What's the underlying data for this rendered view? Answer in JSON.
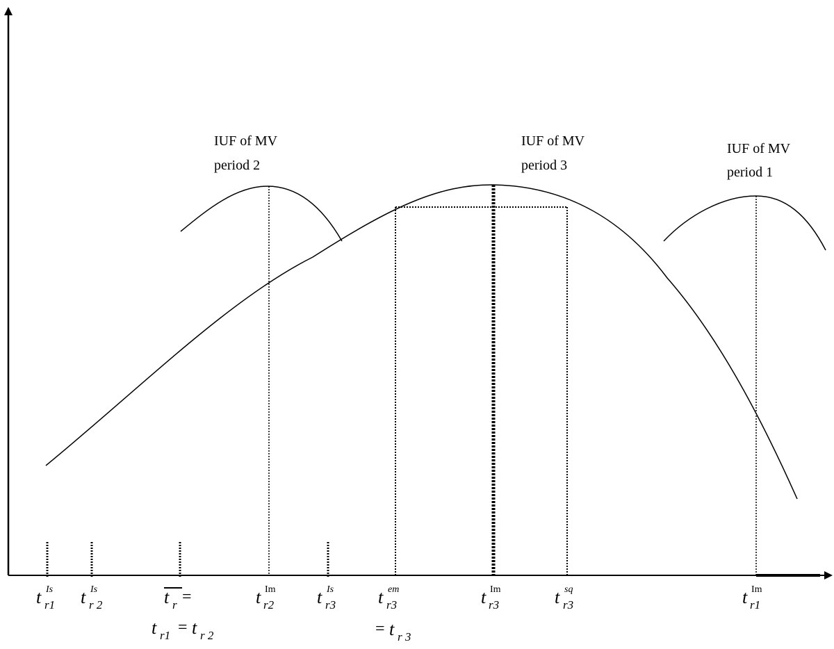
{
  "curves": {
    "period2": {
      "line1": "IUF of MV",
      "line2": "period 2"
    },
    "period3": {
      "line1": "IUF of MV",
      "line2": "period 3"
    },
    "period1": {
      "line1": "IUF of MV",
      "line2": "period 1"
    }
  },
  "ticks": {
    "t_r1_Is": {
      "base": "t",
      "sub": "r1",
      "sup": "Is"
    },
    "t_r2_Is": {
      "base": "t",
      "sub": "r 2",
      "sup": "Is"
    },
    "t_r_bar": {
      "base": "t",
      "sub": "r",
      "eq": "=",
      "line2_a_base": "t",
      "line2_a_sub": "r1",
      "line2_eq": "=",
      "line2_b_base": "t",
      "line2_b_sub": "r 2"
    },
    "t_r2_Im": {
      "base": "t",
      "sub": "r2",
      "sup": "Im"
    },
    "t_r3_Is": {
      "base": "t",
      "sub": "r3",
      "sup": "Is"
    },
    "t_r3_em": {
      "base": "t",
      "sub": "r3",
      "sup": "em",
      "line2_eq": "=",
      "line2_base": "t",
      "line2_sub": "r 3"
    },
    "t_r3_Im": {
      "base": "t",
      "sub": "r3",
      "sup": "Im"
    },
    "t_r3_sq": {
      "base": "t",
      "sub": "r3",
      "sup": "sq"
    },
    "t_r1_Im": {
      "base": "t",
      "sub": "r1",
      "sup": "Im"
    }
  }
}
